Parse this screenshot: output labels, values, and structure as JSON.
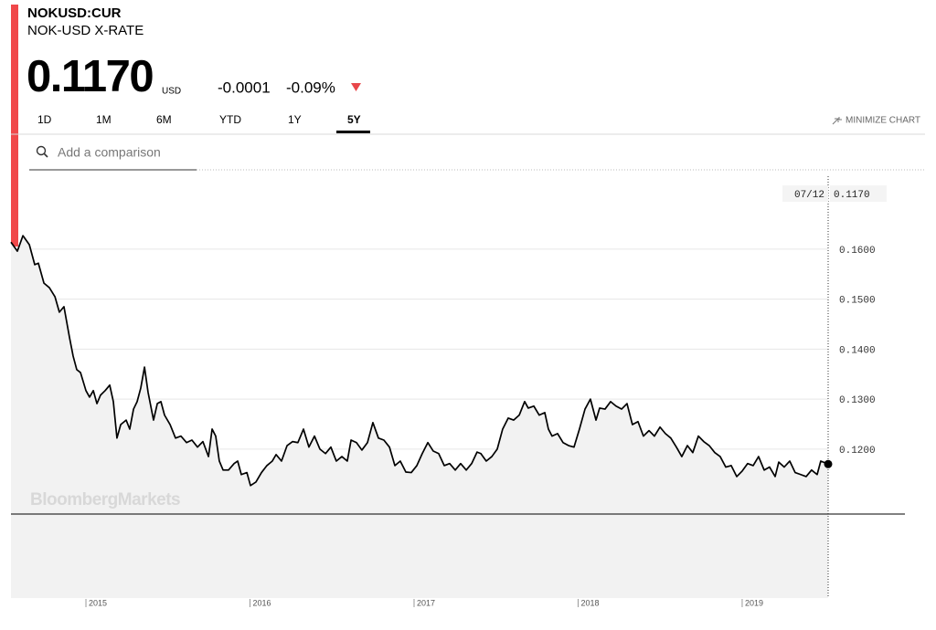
{
  "header": {
    "ticker": "NOKUSD:CUR",
    "name": "NOK-USD X-RATE",
    "price": "0.1170",
    "currency": "USD",
    "change": "-0.0001",
    "change_pct": "-0.09%"
  },
  "tabs": [
    "1D",
    "1M",
    "6M",
    "YTD",
    "1Y",
    "5Y"
  ],
  "active_tab": 5,
  "minimize": "MINIMIZE CHART",
  "search_placeholder": "Add a comparison",
  "watermark": "BloombergMarkets",
  "chart_data": {
    "type": "line",
    "x": [
      2014.543,
      2014.582,
      2014.616,
      2014.655,
      2014.688,
      2014.71,
      2014.744,
      2014.777,
      2014.811,
      2014.838,
      2014.866,
      2014.9,
      2014.922,
      2014.944,
      2014.967,
      2015.0,
      2015.022,
      2015.045,
      2015.067,
      2015.089,
      2015.117,
      2015.145,
      2015.167,
      2015.189,
      2015.212,
      2015.245,
      2015.267,
      2015.29,
      2015.312,
      2015.334,
      2015.357,
      2015.379,
      2015.412,
      2015.435,
      2015.457,
      2015.479,
      2015.513,
      2015.546,
      2015.579,
      2015.613,
      2015.646,
      2015.68,
      2015.713,
      2015.747,
      2015.769,
      2015.791,
      2015.813,
      2015.836,
      2015.869,
      2015.903,
      2015.925,
      2015.947,
      2015.981,
      2016.003,
      2016.036,
      2016.07,
      2016.103,
      2016.136,
      2016.159,
      2016.192,
      2016.226,
      2016.259,
      2016.292,
      2016.326,
      2016.359,
      2016.393,
      2016.426,
      2016.46,
      2016.493,
      2016.526,
      2016.56,
      2016.593,
      2016.616,
      2016.649,
      2016.682,
      2016.716,
      2016.749,
      2016.783,
      2016.816,
      2016.85,
      2016.883,
      2016.916,
      2016.95,
      2016.983,
      2017.017,
      2017.05,
      2017.084,
      2017.117,
      2017.15,
      2017.184,
      2017.217,
      2017.251,
      2017.284,
      2017.318,
      2017.351,
      2017.384,
      2017.407,
      2017.44,
      2017.474,
      2017.507,
      2017.54,
      2017.574,
      2017.607,
      2017.641,
      2017.674,
      2017.696,
      2017.73,
      2017.763,
      2017.797,
      2017.819,
      2017.841,
      2017.875,
      2017.908,
      2017.942,
      2017.975,
      2018.008,
      2018.042,
      2018.075,
      2018.109,
      2018.131,
      2018.164,
      2018.198,
      2018.231,
      2018.265,
      2018.298,
      2018.331,
      2018.365,
      2018.398,
      2018.432,
      2018.465,
      2018.499,
      2018.532,
      2018.565,
      2018.599,
      2018.632,
      2018.666,
      2018.699,
      2018.733,
      2018.766,
      2018.799,
      2018.833,
      2018.866,
      2018.9,
      2018.933,
      2018.967,
      2019.0,
      2019.033,
      2019.067,
      2019.1,
      2019.134,
      2019.167,
      2019.201,
      2019.223,
      2019.256,
      2019.29,
      2019.323,
      2019.357,
      2019.39,
      2019.423,
      2019.457,
      2019.479,
      2019.524
    ],
    "series": [
      {
        "color": "#000000",
        "values": [
          0.1614,
          0.1596,
          0.1627,
          0.1609,
          0.1569,
          0.1572,
          0.1532,
          0.1523,
          0.1505,
          0.1474,
          0.1485,
          0.1423,
          0.1386,
          0.1359,
          0.1353,
          0.1317,
          0.1304,
          0.1317,
          0.1291,
          0.1308,
          0.1317,
          0.1328,
          0.1295,
          0.1222,
          0.1249,
          0.1258,
          0.124,
          0.128,
          0.1295,
          0.1322,
          0.1364,
          0.1313,
          0.1258,
          0.1291,
          0.1295,
          0.1268,
          0.1249,
          0.1222,
          0.1226,
          0.1213,
          0.1218,
          0.1204,
          0.1215,
          0.1185,
          0.124,
          0.1226,
          0.1176,
          0.1158,
          0.1158,
          0.1171,
          0.1176,
          0.1149,
          0.1153,
          0.1127,
          0.1134,
          0.1153,
          0.1167,
          0.1176,
          0.1189,
          0.1176,
          0.1207,
          0.1215,
          0.1213,
          0.124,
          0.1204,
          0.1226,
          0.12,
          0.1191,
          0.1204,
          0.1176,
          0.1185,
          0.1176,
          0.1218,
          0.1213,
          0.1198,
          0.1213,
          0.1253,
          0.1222,
          0.1218,
          0.1204,
          0.1167,
          0.1176,
          0.1154,
          0.1153,
          0.1167,
          0.1191,
          0.1213,
          0.1196,
          0.1191,
          0.1167,
          0.1171,
          0.1158,
          0.1171,
          0.1158,
          0.1171,
          0.1194,
          0.1191,
          0.1176,
          0.1185,
          0.12,
          0.124,
          0.1262,
          0.1258,
          0.1268,
          0.1295,
          0.1282,
          0.1286,
          0.1268,
          0.1273,
          0.124,
          0.1226,
          0.1231,
          0.1213,
          0.1207,
          0.1204,
          0.124,
          0.128,
          0.13,
          0.1258,
          0.1282,
          0.128,
          0.1295,
          0.1286,
          0.128,
          0.1291,
          0.1249,
          0.1255,
          0.1226,
          0.1237,
          0.1226,
          0.1244,
          0.1231,
          0.1222,
          0.1204,
          0.1185,
          0.1207,
          0.1193,
          0.1226,
          0.1215,
          0.1207,
          0.1193,
          0.1185,
          0.1164,
          0.1167,
          0.1145,
          0.1156,
          0.1171,
          0.1167,
          0.1185,
          0.1158,
          0.1164,
          0.1145,
          0.1174,
          0.1164,
          0.1176,
          0.1153,
          0.1149,
          0.1145,
          0.1158,
          0.1149,
          0.1176,
          0.117
        ]
      }
    ],
    "xlim": [
      2014.543,
      2019.524
    ],
    "xticks": [
      2015,
      2016,
      2017,
      2018,
      2019
    ],
    "ylim": [
      0.107,
      0.1746
    ],
    "yticks": [
      {
        "value": 0.12,
        "label": "0.1200"
      },
      {
        "value": 0.13,
        "label": "0.1300"
      },
      {
        "value": 0.14,
        "label": "0.1400"
      },
      {
        "value": 0.15,
        "label": "0.1500"
      },
      {
        "value": 0.16,
        "label": "0.1600"
      }
    ],
    "grid": true,
    "last_label": {
      "date": "07/12",
      "value": "0.1170"
    }
  }
}
